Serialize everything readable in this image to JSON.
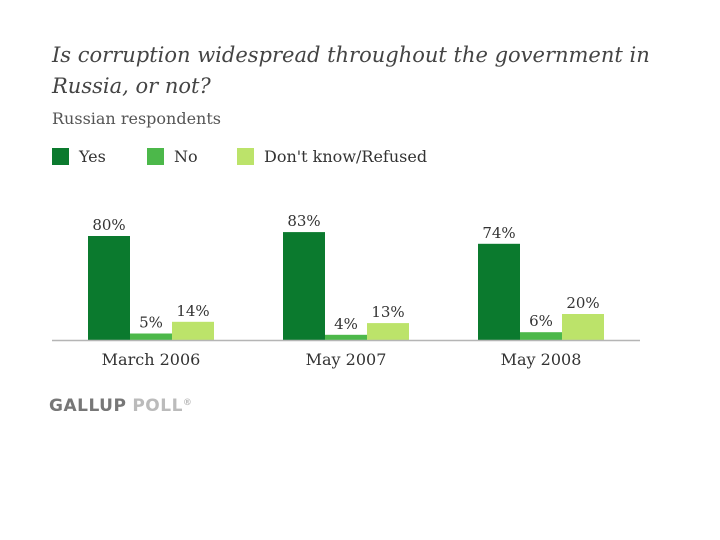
{
  "chart_data": {
    "type": "bar",
    "title": "Is corruption widespread throughout the government in Russia, or not?",
    "subtitle": "Russian respondents",
    "categories": [
      "March 2006",
      "May 2007",
      "May 2008"
    ],
    "series": [
      {
        "name": "Yes",
        "color": "#0b7a2e",
        "values": [
          80,
          83,
          74
        ],
        "labels": [
          "80%",
          "83%",
          "74%"
        ]
      },
      {
        "name": "No",
        "color": "#4cb84a",
        "values": [
          5,
          4,
          6
        ],
        "labels": [
          "5%",
          "4%",
          "6%"
        ]
      },
      {
        "name": "Don't know/Refused",
        "color": "#bce36a",
        "values": [
          14,
          13,
          20
        ],
        "labels": [
          "14%",
          "13%",
          "20%"
        ]
      }
    ],
    "ylim": [
      0,
      100
    ],
    "xlabel": "",
    "ylabel": "",
    "legend": "top-left",
    "grid": false
  },
  "source": {
    "brand_main": "GALLUP",
    "brand_sub": "POLL",
    "registered": "®"
  }
}
